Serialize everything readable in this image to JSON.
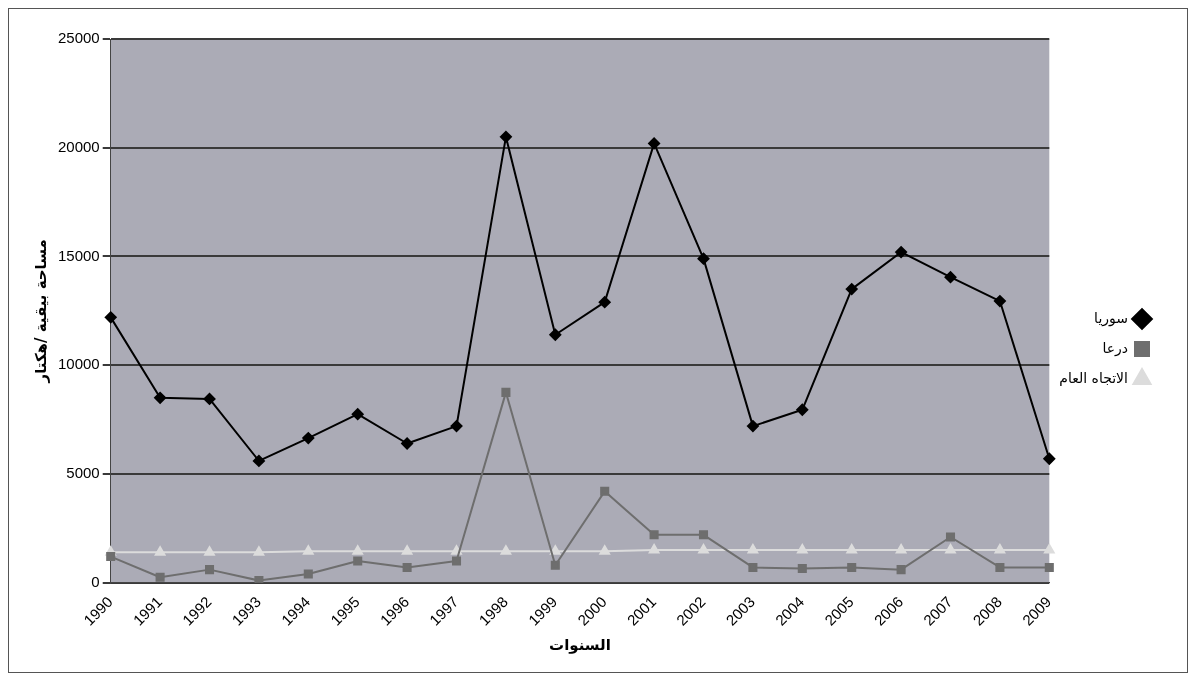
{
  "chart_data": {
    "type": "line",
    "xlabel": "السنوات",
    "ylabel": "مساحة بيقية /هكتار",
    "categories": [
      "1990",
      "1991",
      "1992",
      "1993",
      "1994",
      "1995",
      "1996",
      "1997",
      "1998",
      "1999",
      "2000",
      "2001",
      "2002",
      "2003",
      "2004",
      "2005",
      "2006",
      "2007",
      "2008",
      "2009"
    ],
    "series": [
      {
        "name": "سوريا",
        "color": "#000000",
        "marker": "diamond",
        "values": [
          12200,
          8500,
          8450,
          5600,
          6650,
          7750,
          6400,
          7200,
          20500,
          11400,
          12900,
          20200,
          14900,
          7200,
          7950,
          13500,
          15200,
          14050,
          12950,
          5700
        ]
      },
      {
        "name": "درعا",
        "color": "#6e6e6e",
        "marker": "square",
        "values": [
          1200,
          250,
          600,
          100,
          400,
          1000,
          700,
          1000,
          8750,
          800,
          4200,
          2200,
          2200,
          700,
          650,
          700,
          600,
          2100,
          700,
          700
        ]
      },
      {
        "name": "الاتجاه العام",
        "color": "#dcdcdc",
        "marker": "triangle",
        "values": [
          1400,
          1400,
          1400,
          1400,
          1450,
          1450,
          1450,
          1450,
          1450,
          1450,
          1450,
          1500,
          1500,
          1500,
          1500,
          1500,
          1500,
          1500,
          1500,
          1500
        ]
      }
    ],
    "ylim": [
      0,
      25000
    ],
    "yticks": [
      0,
      5000,
      10000,
      15000,
      20000,
      25000
    ],
    "grid": "y",
    "legend": "right",
    "line_style": "solid"
  }
}
